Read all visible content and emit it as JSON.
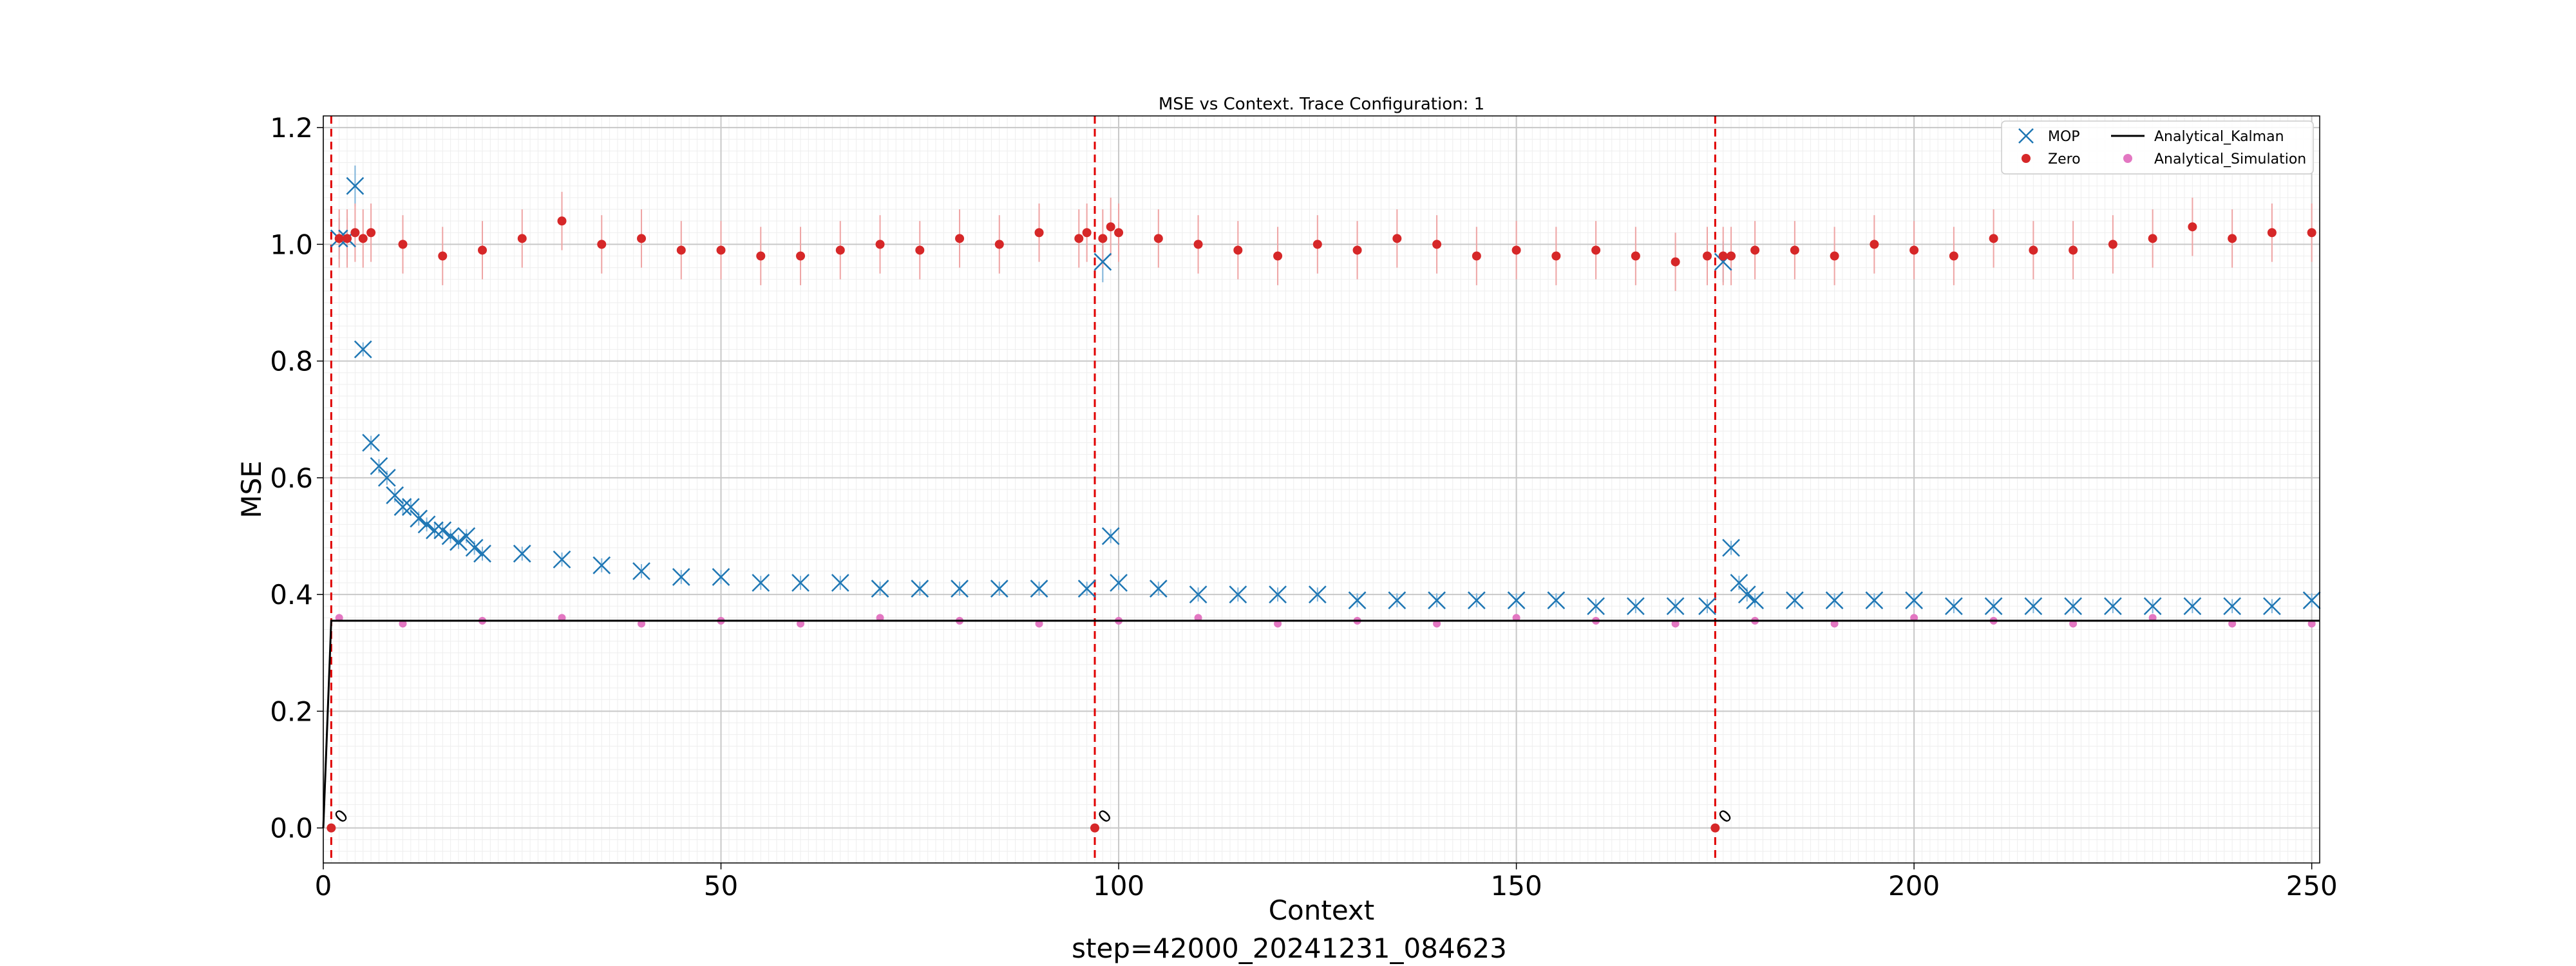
{
  "chart_data": {
    "type": "scatter",
    "title": "MSE vs Context. Trace Configuration: 1",
    "xlabel": "Context",
    "ylabel": "MSE",
    "footer": "step=42000_20241231_084623",
    "xlim": [
      0,
      251
    ],
    "ylim": [
      -0.06,
      1.22
    ],
    "xticks": [
      0,
      50,
      100,
      150,
      200,
      250
    ],
    "xtick_labels": [
      "0",
      "50",
      "100",
      "150",
      "200",
      "250"
    ],
    "yticks": [
      0.0,
      0.2,
      0.4,
      0.6,
      0.8,
      1.0,
      1.2
    ],
    "ytick_labels": [
      "0.0",
      "0.2",
      "0.4",
      "0.6",
      "0.8",
      "1.0",
      "1.2"
    ],
    "grid": true,
    "legend_position": "top-right",
    "segment_boundaries": [
      1,
      97,
      175
    ],
    "segment_marker_label": "0",
    "series": [
      {
        "name": "MOP",
        "marker": "x",
        "color": "#1f77b4",
        "error_bars": true,
        "x": [
          2,
          3,
          4,
          5,
          6,
          7,
          8,
          9,
          10,
          11,
          12,
          13,
          14,
          15,
          16,
          17,
          18,
          19,
          20,
          25,
          30,
          35,
          40,
          45,
          50,
          55,
          60,
          65,
          70,
          75,
          80,
          85,
          90,
          96,
          98,
          99,
          100,
          105,
          110,
          115,
          120,
          125,
          130,
          135,
          140,
          145,
          150,
          155,
          160,
          165,
          170,
          174,
          176,
          177,
          178,
          179,
          180,
          185,
          190,
          195,
          200,
          205,
          210,
          215,
          220,
          225,
          230,
          235,
          240,
          245,
          250
        ],
        "values": [
          1.01,
          1.01,
          1.1,
          0.82,
          0.66,
          0.62,
          0.6,
          0.57,
          0.55,
          0.55,
          0.53,
          0.52,
          0.51,
          0.51,
          0.5,
          0.49,
          0.5,
          0.48,
          0.47,
          0.47,
          0.46,
          0.45,
          0.44,
          0.43,
          0.43,
          0.42,
          0.42,
          0.42,
          0.41,
          0.41,
          0.41,
          0.41,
          0.41,
          0.41,
          0.97,
          0.5,
          0.42,
          0.41,
          0.4,
          0.4,
          0.4,
          0.4,
          0.39,
          0.39,
          0.39,
          0.39,
          0.39,
          0.39,
          0.38,
          0.38,
          0.38,
          0.38,
          0.97,
          0.48,
          0.42,
          0.4,
          0.39,
          0.39,
          0.39,
          0.39,
          0.39,
          0.38,
          0.38,
          0.38,
          0.38,
          0.38,
          0.38,
          0.38,
          0.38,
          0.38,
          0.39
        ]
      },
      {
        "name": "Zero",
        "marker": "o",
        "color": "#d62728",
        "error_bars": true,
        "x": [
          1,
          2,
          3,
          4,
          5,
          6,
          10,
          15,
          20,
          25,
          30,
          35,
          40,
          45,
          50,
          55,
          60,
          65,
          70,
          75,
          80,
          85,
          90,
          95,
          96,
          97,
          98,
          99,
          100,
          105,
          110,
          115,
          120,
          125,
          130,
          135,
          140,
          145,
          150,
          155,
          160,
          165,
          170,
          174,
          175,
          176,
          177,
          180,
          185,
          190,
          195,
          200,
          205,
          210,
          215,
          220,
          225,
          230,
          235,
          240,
          245,
          250
        ],
        "values": [
          0.0,
          1.01,
          1.01,
          1.02,
          1.01,
          1.02,
          1.0,
          0.98,
          0.99,
          1.01,
          1.04,
          1.0,
          1.01,
          0.99,
          0.99,
          0.98,
          0.98,
          0.99,
          1.0,
          0.99,
          1.01,
          1.0,
          1.02,
          1.01,
          1.02,
          0.0,
          1.01,
          1.03,
          1.02,
          1.01,
          1.0,
          0.99,
          0.98,
          1.0,
          0.99,
          1.01,
          1.0,
          0.98,
          0.99,
          0.98,
          0.99,
          0.98,
          0.97,
          0.98,
          0.0,
          0.98,
          0.98,
          0.99,
          0.99,
          0.98,
          1.0,
          0.99,
          0.98,
          1.01,
          0.99,
          0.99,
          1.0,
          1.01,
          1.03,
          1.01,
          1.02,
          1.02
        ]
      },
      {
        "name": "Analytical_Kalman",
        "marker": "line",
        "color": "#000000",
        "x": [
          0,
          1,
          251
        ],
        "values": [
          0.0,
          0.355,
          0.355
        ]
      },
      {
        "name": "Analytical_Simulation",
        "marker": "o",
        "color": "#e377c2",
        "x": [
          2,
          10,
          20,
          30,
          40,
          50,
          60,
          70,
          80,
          90,
          100,
          110,
          120,
          130,
          140,
          150,
          160,
          170,
          180,
          190,
          200,
          210,
          220,
          230,
          240,
          250
        ],
        "values": [
          0.36,
          0.35,
          0.355,
          0.36,
          0.35,
          0.355,
          0.35,
          0.36,
          0.355,
          0.35,
          0.355,
          0.36,
          0.35,
          0.355,
          0.35,
          0.36,
          0.355,
          0.35,
          0.355,
          0.35,
          0.36,
          0.355,
          0.35,
          0.36,
          0.35,
          0.35
        ]
      }
    ]
  }
}
